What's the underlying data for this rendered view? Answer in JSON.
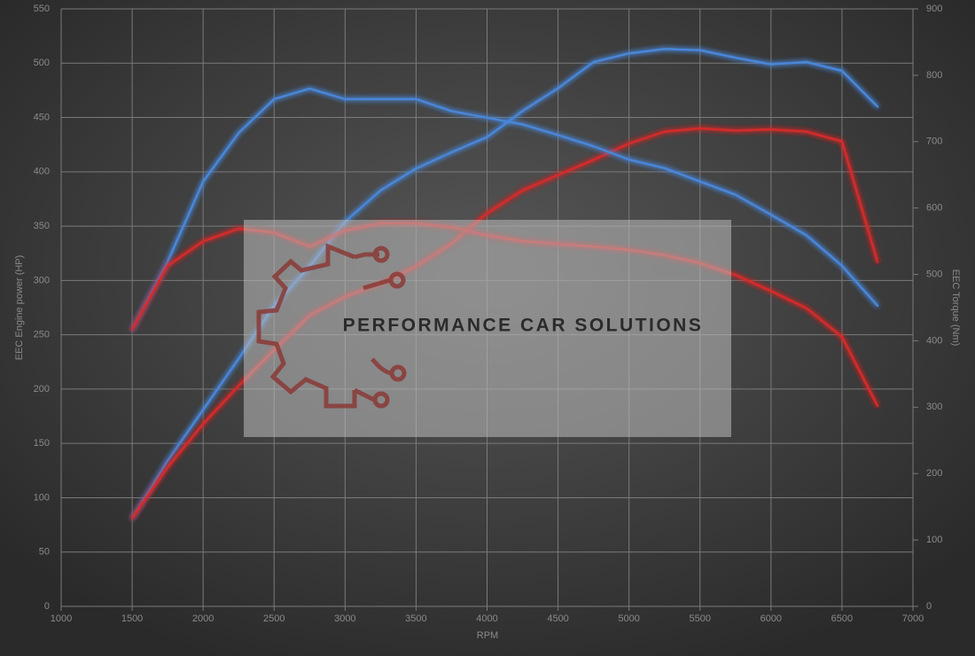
{
  "chart_data": {
    "type": "line",
    "xlabel": "RPM",
    "ylabel": "EEC Engine power (HP)",
    "y2label": "EEC Torque (Nm)",
    "watermark": "PERFORMANCE CAR SOLUTIONS",
    "x": [
      1500,
      1750,
      2000,
      2250,
      2500,
      2750,
      3000,
      3250,
      3500,
      3750,
      4000,
      4250,
      4500,
      4750,
      5000,
      5250,
      5500,
      5750,
      6000,
      6250,
      6500,
      6750
    ],
    "series": [
      {
        "color": "#4a86d8",
        "values": [
          81,
          134,
          181,
          228,
          277,
          313,
          354,
          383,
          403,
          418,
          432,
          456,
          477,
          501,
          509,
          513,
          512,
          505,
          499,
          501,
          493,
          460
        ]
      },
      {
        "color": "#d42a2a",
        "values": [
          81,
          128,
          168,
          203,
          236,
          268,
          285,
          297,
          313,
          334,
          362,
          383,
          397,
          411,
          426,
          437,
          440,
          438,
          439,
          437,
          428,
          317
        ]
      },
      {
        "color": "#4a86d8",
        "axis": "y2",
        "values": [
          417,
          519,
          640,
          713,
          764,
          780,
          764,
          764,
          764,
          746,
          736,
          726,
          710,
          693,
          673,
          660,
          640,
          620,
          590,
          559,
          513,
          453
        ]
      },
      {
        "color": "#d42a2a",
        "axis": "y2",
        "values": [
          417,
          513,
          550,
          569,
          563,
          542,
          566,
          577,
          577,
          571,
          559,
          550,
          546,
          542,
          537,
          529,
          517,
          499,
          475,
          449,
          406,
          302
        ]
      }
    ],
    "xlim": [
      1000,
      7000
    ],
    "xticks": [
      1000,
      1500,
      2000,
      2500,
      3000,
      3500,
      4000,
      4500,
      5000,
      5500,
      6000,
      6500,
      7000
    ],
    "ylim": [
      0,
      550
    ],
    "yticks": [
      0,
      50,
      100,
      150,
      200,
      250,
      300,
      350,
      400,
      450,
      500,
      550
    ],
    "y2lim": [
      0,
      900
    ],
    "y2ticks": [
      0,
      100,
      200,
      300,
      400,
      500,
      600,
      700,
      800,
      900
    ],
    "grid": true
  }
}
